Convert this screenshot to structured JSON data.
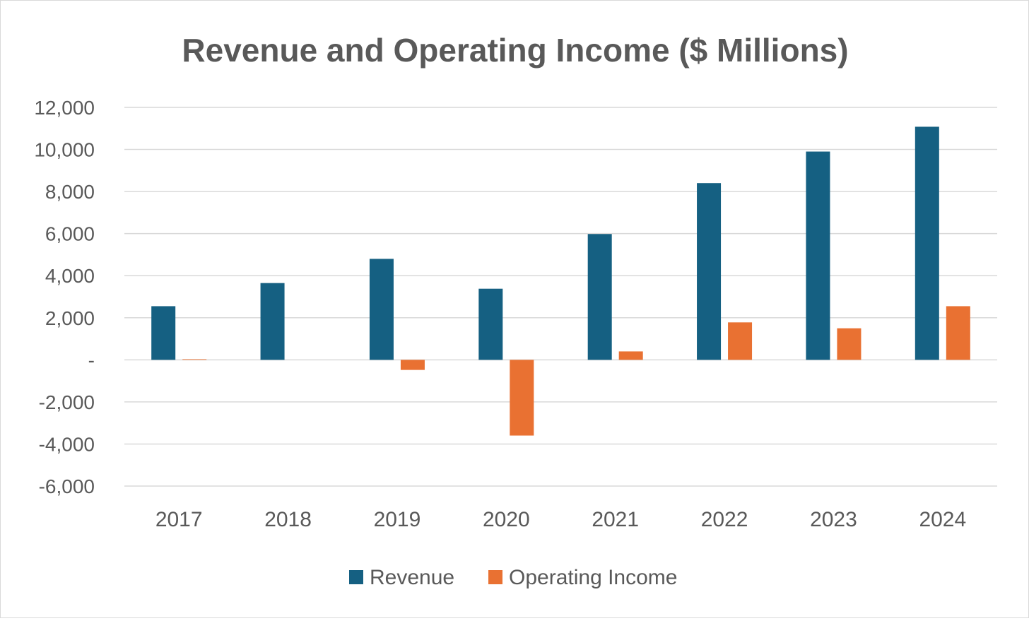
{
  "chart_data": {
    "type": "bar",
    "title": "Revenue and Operating Income ($ Millions)",
    "categories": [
      "2017",
      "2018",
      "2019",
      "2020",
      "2021",
      "2022",
      "2023",
      "2024"
    ],
    "series": [
      {
        "name": "Revenue",
        "color": "#156082",
        "values": [
          2550,
          3650,
          4800,
          3380,
          5980,
          8400,
          9900,
          11080
        ]
      },
      {
        "name": "Operating Income",
        "color": "#E97132",
        "values": [
          30,
          0,
          -480,
          -3600,
          400,
          1780,
          1500,
          2550
        ]
      }
    ],
    "ylim": [
      -6000,
      12000
    ],
    "yticks": [
      12000,
      10000,
      8000,
      6000,
      4000,
      2000,
      0,
      -2000,
      -4000,
      -6000
    ],
    "ytick_labels": [
      "12,000",
      "10,000",
      "8,000",
      "6,000",
      "4,000",
      "2,000",
      "-",
      "-2,000",
      "-4,000",
      "-6,000"
    ],
    "grid": true,
    "legend_position": "bottom"
  }
}
